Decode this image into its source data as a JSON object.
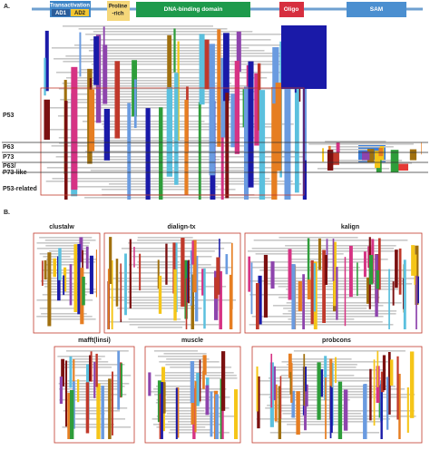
{
  "panel_a": {
    "label": "A.",
    "domains": {
      "transactivation": "Transactivation",
      "ad1": "AD1",
      "ad2": "AD2",
      "proline": [
        "Proline",
        "-rich"
      ],
      "dna_binding": "DNA-binding domain",
      "oligo": "Oligo",
      "sam": "SAM"
    },
    "groups": {
      "p53": "P53",
      "p63": "P63",
      "p73": "P73",
      "p63_p73_like": [
        "P63/",
        "P73-like"
      ],
      "p53_related": "P53-related"
    }
  },
  "panel_b": {
    "label": "B.",
    "methods": [
      "clustalw",
      "dialign-tx",
      "kalign",
      "mafft(linsi)",
      "muscle",
      "probcons"
    ]
  }
}
